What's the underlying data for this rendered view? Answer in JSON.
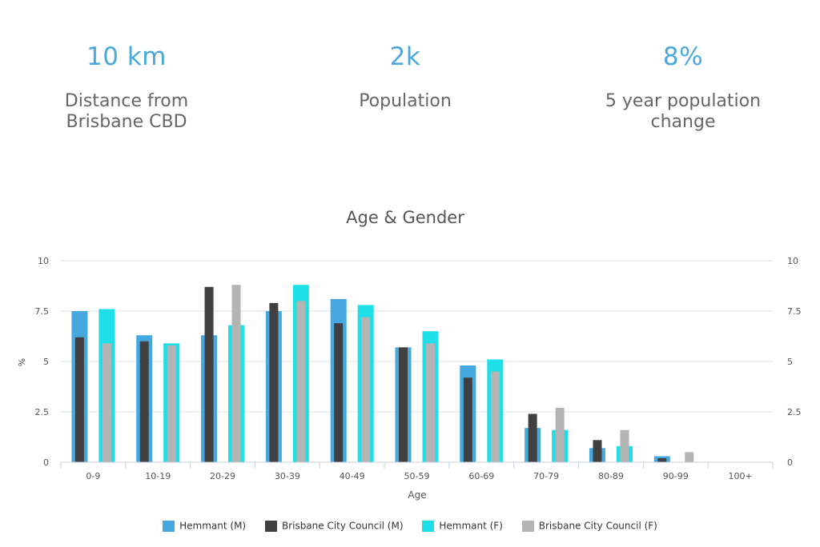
{
  "stats": [
    {
      "value": "10 km",
      "label": "Distance from Brisbane CBD"
    },
    {
      "value": "2k",
      "label": "Population"
    },
    {
      "value": "8%",
      "label": "5 year population change"
    }
  ],
  "chart_data": {
    "type": "bar",
    "title": "Age & Gender",
    "xlabel": "Age",
    "ylabel": "%",
    "ylim": [
      0,
      10
    ],
    "yticks": [
      0,
      2.5,
      5,
      7.5,
      10
    ],
    "ytick_labels": [
      "0",
      "2.5",
      "5",
      "7.5",
      "10"
    ],
    "grid": true,
    "legend_position": "bottom",
    "categories": [
      "0-9",
      "10-19",
      "20-29",
      "30-39",
      "40-49",
      "50-59",
      "60-69",
      "70-79",
      "80-89",
      "90-99",
      "100+"
    ],
    "series": [
      {
        "name": "Hemmant (M)",
        "color": "#45a9e0",
        "values": [
          7.5,
          6.3,
          6.3,
          7.5,
          8.1,
          5.7,
          4.8,
          1.7,
          0.7,
          0.3,
          0
        ]
      },
      {
        "name": "Brisbane City Council (M)",
        "color": "#404040",
        "values": [
          6.2,
          6.0,
          8.7,
          7.9,
          6.9,
          5.7,
          4.2,
          2.4,
          1.1,
          0.2,
          0
        ]
      },
      {
        "name": "Hemmant (F)",
        "color": "#1edfe8",
        "values": [
          7.6,
          5.9,
          6.8,
          8.8,
          7.8,
          6.5,
          5.1,
          1.6,
          0.8,
          0,
          0
        ]
      },
      {
        "name": "Brisbane City Council (F)",
        "color": "#b4b4b4",
        "values": [
          5.9,
          5.8,
          8.8,
          8.0,
          7.2,
          5.9,
          4.5,
          2.7,
          1.6,
          0.5,
          0
        ]
      }
    ]
  }
}
